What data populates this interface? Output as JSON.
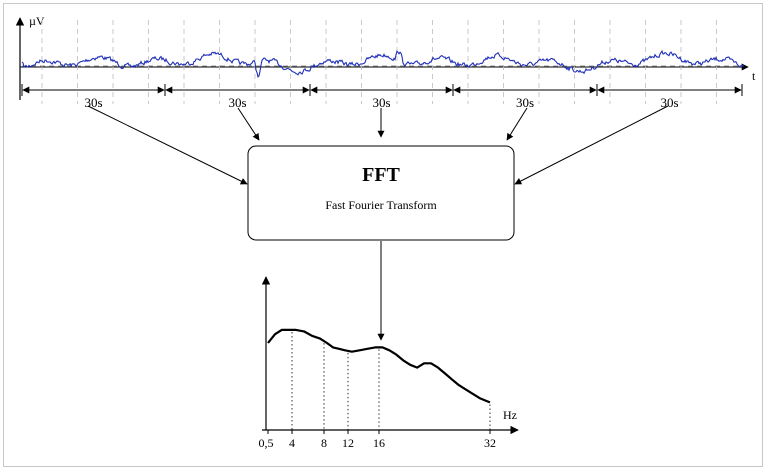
{
  "signal": {
    "y_axis_label": "µV",
    "x_axis_label": "t",
    "segments": [
      "30s",
      "30s",
      "30s",
      "30s",
      "30s"
    ]
  },
  "fft_box": {
    "title": "FFT",
    "subtitle": "Fast Fourier Transform"
  },
  "chart_data": {
    "type": "line",
    "xlabel": "Hz",
    "ylabel": "",
    "x_ticks": [
      "0,5",
      "4",
      "8",
      "12",
      "16",
      "32"
    ],
    "x_tick_values": [
      0.5,
      4,
      8,
      12,
      16,
      32
    ],
    "xlim": [
      0.5,
      33
    ],
    "ylim": [
      0,
      1
    ],
    "series": [
      {
        "x": [
          0.5,
          1.5,
          2.5,
          3.5,
          4.5,
          5.5,
          6.5,
          7.5,
          8.5,
          9.5,
          10.5,
          11.5,
          12.5,
          13.5,
          14.5,
          15.5,
          16.5,
          17.5,
          18.5,
          19.5,
          20.5,
          21.5,
          22.5,
          23.5,
          24.5,
          25.5,
          26.5,
          27.5,
          28.5,
          29.5,
          30.5,
          31.5,
          32
        ],
        "y": [
          0.6,
          0.66,
          0.69,
          0.69,
          0.69,
          0.68,
          0.65,
          0.63,
          0.6,
          0.57,
          0.56,
          0.55,
          0.54,
          0.55,
          0.56,
          0.57,
          0.57,
          0.55,
          0.52,
          0.48,
          0.45,
          0.43,
          0.46,
          0.46,
          0.43,
          0.39,
          0.35,
          0.31,
          0.28,
          0.25,
          0.22,
          0.2,
          0.19
        ]
      }
    ]
  }
}
